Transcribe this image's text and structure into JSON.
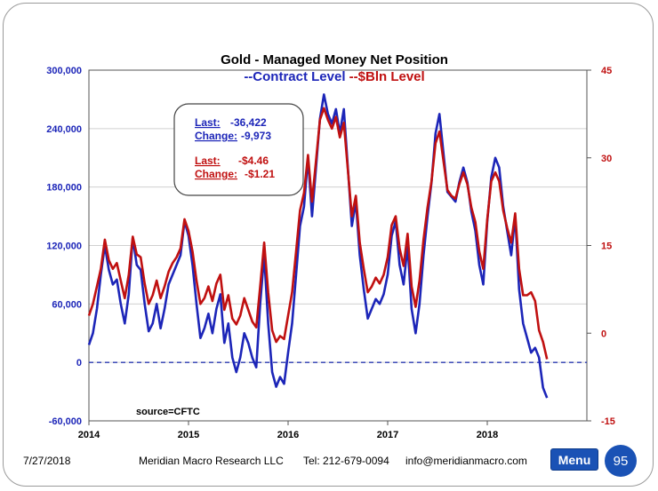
{
  "footer": {
    "date": "7/27/2018",
    "company": "Meridian Macro Research LLC",
    "phone": "Tel: 212-679-0094",
    "email": "info@meridianmacro.com",
    "menu_label": "Menu",
    "page_number": "95"
  },
  "colors": {
    "contracts": "#1c25b8",
    "dollars": "#c01010",
    "zero_line": "#2a3ab0"
  },
  "chart_data": {
    "type": "line",
    "title": "Gold - Managed Money Net Position",
    "subtitle_parts": [
      {
        "text": "--Contract Level",
        "series": 0
      },
      {
        "text": "--$Bln Level",
        "series": 1
      }
    ],
    "source": "source=CFTC",
    "x_ticks": [
      2014,
      2015,
      2016,
      2017,
      2018
    ],
    "x_range": [
      2014.0,
      2019.0
    ],
    "left_axis": {
      "range": [
        -60000,
        300000
      ],
      "ticks": [
        -60000,
        0,
        60000,
        120000,
        180000,
        240000,
        300000
      ],
      "tick_labels": [
        "-60,000",
        "0",
        "60,000",
        "120,000",
        "180,000",
        "240,000",
        "300,000"
      ]
    },
    "right_axis": {
      "range": [
        -15,
        45
      ],
      "ticks": [
        -15,
        0,
        15,
        30,
        45
      ],
      "tick_labels": [
        "-15",
        "0",
        "15",
        "30",
        "45"
      ]
    },
    "zero_line": 0,
    "annotation": {
      "last_label": "Last:",
      "last_contracts": "-36,422",
      "change_label": "Change:",
      "change_contracts": "-9,973",
      "last_label_usd": "Last:",
      "last_usd": "-$4.46",
      "change_label_usd": "Change:",
      "change_usd": "-$1.21"
    },
    "series": [
      {
        "name": "Contract Level",
        "axis": "left",
        "points": [
          [
            2014.0,
            18000
          ],
          [
            2014.04,
            30000
          ],
          [
            2014.08,
            55000
          ],
          [
            2014.12,
            90000
          ],
          [
            2014.16,
            120000
          ],
          [
            2014.2,
            95000
          ],
          [
            2014.24,
            80000
          ],
          [
            2014.28,
            85000
          ],
          [
            2014.32,
            60000
          ],
          [
            2014.36,
            40000
          ],
          [
            2014.4,
            70000
          ],
          [
            2014.44,
            128000
          ],
          [
            2014.48,
            100000
          ],
          [
            2014.52,
            95000
          ],
          [
            2014.56,
            60000
          ],
          [
            2014.6,
            32000
          ],
          [
            2014.64,
            40000
          ],
          [
            2014.68,
            60000
          ],
          [
            2014.72,
            35000
          ],
          [
            2014.76,
            55000
          ],
          [
            2014.8,
            80000
          ],
          [
            2014.84,
            90000
          ],
          [
            2014.88,
            100000
          ],
          [
            2014.92,
            110000
          ],
          [
            2014.96,
            145000
          ],
          [
            2015.0,
            130000
          ],
          [
            2015.04,
            100000
          ],
          [
            2015.08,
            60000
          ],
          [
            2015.12,
            25000
          ],
          [
            2015.16,
            35000
          ],
          [
            2015.2,
            50000
          ],
          [
            2015.24,
            30000
          ],
          [
            2015.28,
            55000
          ],
          [
            2015.32,
            70000
          ],
          [
            2015.36,
            20000
          ],
          [
            2015.4,
            40000
          ],
          [
            2015.44,
            5000
          ],
          [
            2015.48,
            -10000
          ],
          [
            2015.52,
            5000
          ],
          [
            2015.56,
            30000
          ],
          [
            2015.6,
            20000
          ],
          [
            2015.64,
            5000
          ],
          [
            2015.68,
            -5000
          ],
          [
            2015.72,
            60000
          ],
          [
            2015.76,
            110000
          ],
          [
            2015.8,
            40000
          ],
          [
            2015.84,
            -10000
          ],
          [
            2015.88,
            -25000
          ],
          [
            2015.92,
            -15000
          ],
          [
            2015.96,
            -22000
          ],
          [
            2016.0,
            10000
          ],
          [
            2016.04,
            40000
          ],
          [
            2016.08,
            90000
          ],
          [
            2016.12,
            140000
          ],
          [
            2016.16,
            160000
          ],
          [
            2016.2,
            210000
          ],
          [
            2016.24,
            150000
          ],
          [
            2016.28,
            200000
          ],
          [
            2016.32,
            250000
          ],
          [
            2016.36,
            275000
          ],
          [
            2016.4,
            255000
          ],
          [
            2016.44,
            245000
          ],
          [
            2016.48,
            260000
          ],
          [
            2016.52,
            235000
          ],
          [
            2016.56,
            260000
          ],
          [
            2016.6,
            200000
          ],
          [
            2016.64,
            140000
          ],
          [
            2016.68,
            165000
          ],
          [
            2016.72,
            110000
          ],
          [
            2016.76,
            75000
          ],
          [
            2016.8,
            45000
          ],
          [
            2016.84,
            55000
          ],
          [
            2016.88,
            65000
          ],
          [
            2016.92,
            60000
          ],
          [
            2016.96,
            70000
          ],
          [
            2017.0,
            90000
          ],
          [
            2017.04,
            130000
          ],
          [
            2017.08,
            145000
          ],
          [
            2017.12,
            100000
          ],
          [
            2017.16,
            80000
          ],
          [
            2017.2,
            120000
          ],
          [
            2017.24,
            55000
          ],
          [
            2017.28,
            30000
          ],
          [
            2017.32,
            60000
          ],
          [
            2017.36,
            110000
          ],
          [
            2017.4,
            150000
          ],
          [
            2017.44,
            185000
          ],
          [
            2017.48,
            235000
          ],
          [
            2017.52,
            255000
          ],
          [
            2017.56,
            215000
          ],
          [
            2017.6,
            175000
          ],
          [
            2017.64,
            170000
          ],
          [
            2017.68,
            165000
          ],
          [
            2017.72,
            185000
          ],
          [
            2017.76,
            200000
          ],
          [
            2017.8,
            185000
          ],
          [
            2017.84,
            155000
          ],
          [
            2017.88,
            135000
          ],
          [
            2017.92,
            100000
          ],
          [
            2017.96,
            80000
          ],
          [
            2018.0,
            145000
          ],
          [
            2018.04,
            190000
          ],
          [
            2018.08,
            210000
          ],
          [
            2018.12,
            200000
          ],
          [
            2018.16,
            160000
          ],
          [
            2018.2,
            135000
          ],
          [
            2018.24,
            110000
          ],
          [
            2018.28,
            150000
          ],
          [
            2018.32,
            75000
          ],
          [
            2018.36,
            40000
          ],
          [
            2018.4,
            25000
          ],
          [
            2018.44,
            10000
          ],
          [
            2018.48,
            15000
          ],
          [
            2018.52,
            5000
          ],
          [
            2018.56,
            -26000
          ],
          [
            2018.6,
            -36422
          ]
        ]
      },
      {
        "name": "$Bln Level",
        "axis": "right",
        "points": [
          [
            2014.0,
            3.0
          ],
          [
            2014.04,
            5.0
          ],
          [
            2014.08,
            8.0
          ],
          [
            2014.12,
            11.0
          ],
          [
            2014.16,
            16.0
          ],
          [
            2014.2,
            12.5
          ],
          [
            2014.24,
            11.0
          ],
          [
            2014.28,
            12.0
          ],
          [
            2014.32,
            9.0
          ],
          [
            2014.36,
            6.0
          ],
          [
            2014.4,
            10.0
          ],
          [
            2014.44,
            16.5
          ],
          [
            2014.48,
            13.5
          ],
          [
            2014.52,
            13.0
          ],
          [
            2014.56,
            8.5
          ],
          [
            2014.6,
            5.0
          ],
          [
            2014.64,
            6.5
          ],
          [
            2014.68,
            9.0
          ],
          [
            2014.72,
            6.0
          ],
          [
            2014.76,
            8.0
          ],
          [
            2014.8,
            10.5
          ],
          [
            2014.84,
            12.0
          ],
          [
            2014.88,
            13.0
          ],
          [
            2014.92,
            14.5
          ],
          [
            2014.96,
            19.5
          ],
          [
            2015.0,
            17.5
          ],
          [
            2015.04,
            14.0
          ],
          [
            2015.08,
            9.0
          ],
          [
            2015.12,
            5.0
          ],
          [
            2015.16,
            6.0
          ],
          [
            2015.2,
            8.0
          ],
          [
            2015.24,
            5.5
          ],
          [
            2015.28,
            8.5
          ],
          [
            2015.32,
            10.0
          ],
          [
            2015.36,
            4.0
          ],
          [
            2015.4,
            6.5
          ],
          [
            2015.44,
            2.5
          ],
          [
            2015.48,
            1.5
          ],
          [
            2015.52,
            3.0
          ],
          [
            2015.56,
            6.0
          ],
          [
            2015.6,
            4.0
          ],
          [
            2015.64,
            2.0
          ],
          [
            2015.68,
            1.0
          ],
          [
            2015.72,
            8.0
          ],
          [
            2015.76,
            15.5
          ],
          [
            2015.8,
            7.0
          ],
          [
            2015.84,
            0.5
          ],
          [
            2015.88,
            -1.5
          ],
          [
            2015.92,
            -0.5
          ],
          [
            2015.96,
            -1.0
          ],
          [
            2016.0,
            3.0
          ],
          [
            2016.04,
            7.0
          ],
          [
            2016.08,
            14.0
          ],
          [
            2016.12,
            21.0
          ],
          [
            2016.16,
            24.0
          ],
          [
            2016.2,
            30.5
          ],
          [
            2016.24,
            22.5
          ],
          [
            2016.28,
            29.5
          ],
          [
            2016.32,
            36.5
          ],
          [
            2016.36,
            38.5
          ],
          [
            2016.4,
            36.5
          ],
          [
            2016.44,
            35.0
          ],
          [
            2016.48,
            37.0
          ],
          [
            2016.52,
            33.5
          ],
          [
            2016.56,
            36.0
          ],
          [
            2016.6,
            28.0
          ],
          [
            2016.64,
            20.0
          ],
          [
            2016.68,
            23.5
          ],
          [
            2016.72,
            15.5
          ],
          [
            2016.76,
            11.0
          ],
          [
            2016.8,
            7.0
          ],
          [
            2016.84,
            8.0
          ],
          [
            2016.88,
            9.5
          ],
          [
            2016.92,
            8.5
          ],
          [
            2016.96,
            10.0
          ],
          [
            2017.0,
            13.0
          ],
          [
            2017.04,
            18.5
          ],
          [
            2017.08,
            20.0
          ],
          [
            2017.12,
            14.5
          ],
          [
            2017.16,
            11.5
          ],
          [
            2017.2,
            17.0
          ],
          [
            2017.24,
            8.0
          ],
          [
            2017.28,
            4.5
          ],
          [
            2017.32,
            9.0
          ],
          [
            2017.36,
            16.0
          ],
          [
            2017.4,
            21.5
          ],
          [
            2017.44,
            26.0
          ],
          [
            2017.48,
            32.5
          ],
          [
            2017.52,
            34.5
          ],
          [
            2017.56,
            29.5
          ],
          [
            2017.6,
            24.5
          ],
          [
            2017.64,
            23.5
          ],
          [
            2017.68,
            23.0
          ],
          [
            2017.72,
            25.5
          ],
          [
            2017.76,
            27.5
          ],
          [
            2017.8,
            25.5
          ],
          [
            2017.84,
            21.5
          ],
          [
            2017.88,
            19.0
          ],
          [
            2017.92,
            14.0
          ],
          [
            2017.96,
            11.0
          ],
          [
            2018.0,
            19.5
          ],
          [
            2018.04,
            26.0
          ],
          [
            2018.08,
            27.5
          ],
          [
            2018.12,
            26.0
          ],
          [
            2018.16,
            21.0
          ],
          [
            2018.2,
            18.0
          ],
          [
            2018.24,
            15.5
          ],
          [
            2018.28,
            20.5
          ],
          [
            2018.32,
            11.0
          ],
          [
            2018.36,
            6.5
          ],
          [
            2018.4,
            6.5
          ],
          [
            2018.44,
            7.0
          ],
          [
            2018.48,
            5.5
          ],
          [
            2018.52,
            0.5
          ],
          [
            2018.56,
            -1.5
          ],
          [
            2018.6,
            -4.46
          ]
        ]
      }
    ]
  }
}
